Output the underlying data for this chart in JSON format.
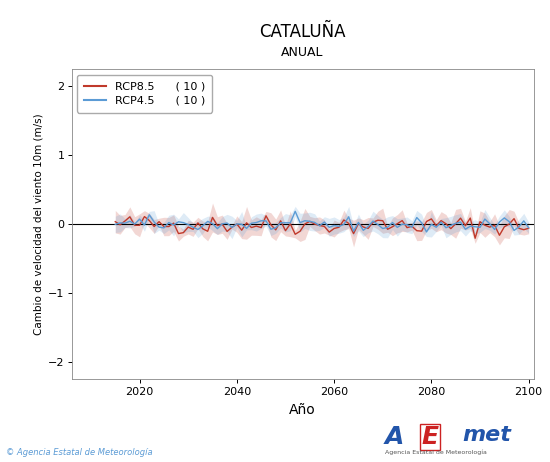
{
  "title": "CATALUÑA",
  "subtitle": "ANUAL",
  "xlabel": "Año",
  "ylabel": "Cambio de velocidad del viento 10m (m/s)",
  "xlim": [
    2006,
    2101
  ],
  "ylim": [
    -2.25,
    2.25
  ],
  "xticks": [
    2020,
    2040,
    2060,
    2080,
    2100
  ],
  "yticks": [
    -2,
    -1,
    0,
    1,
    2
  ],
  "rcp85_color": "#c0392b",
  "rcp45_color": "#5b9bd5",
  "rcp85_label": "RCP8.5",
  "rcp45_label": "RCP4.5",
  "rcp85_n": "( 10 )",
  "rcp45_n": "( 10 )",
  "background_color": "#ffffff",
  "plot_bg_color": "#ffffff",
  "seed": 42,
  "n_years": 86,
  "year_start": 2015,
  "copyright_text": "© Agencia Estatal de Meteorología"
}
